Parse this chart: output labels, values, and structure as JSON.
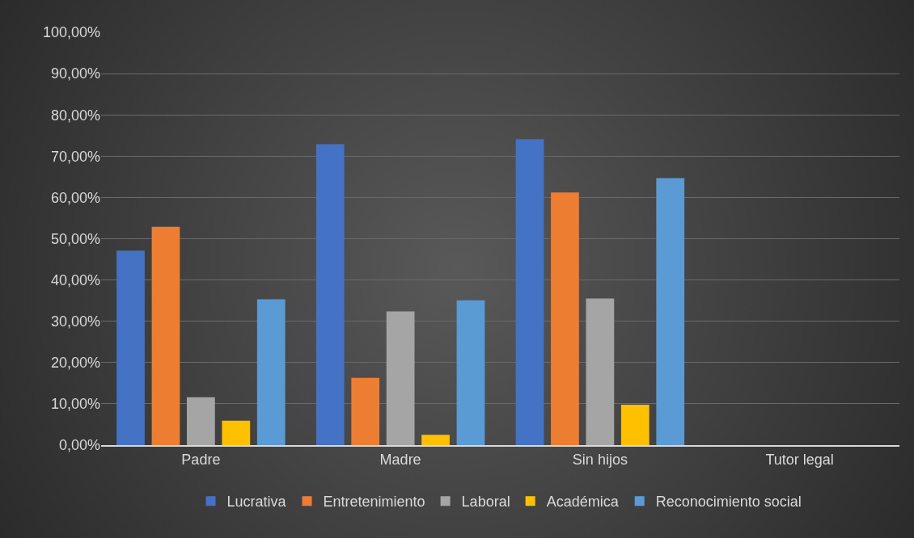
{
  "chart_data": {
    "type": "bar",
    "categories": [
      "Padre",
      "Madre",
      "Sin hijos",
      "Tutor legal"
    ],
    "series": [
      {
        "name": "Lucrativa",
        "color": "#4472c4",
        "values": [
          47.1,
          72.9,
          74.1,
          0
        ]
      },
      {
        "name": "Entretenimiento",
        "color": "#ed7d31",
        "values": [
          52.9,
          16.3,
          61.2,
          0
        ]
      },
      {
        "name": "Laboral",
        "color": "#a5a5a5",
        "values": [
          11.6,
          32.4,
          35.5,
          0
        ]
      },
      {
        "name": "Académica",
        "color": "#ffc000",
        "values": [
          5.9,
          2.5,
          9.8,
          0
        ]
      },
      {
        "name": "Reconocimiento social",
        "color": "#5b9bd5",
        "values": [
          35.3,
          35.1,
          64.7,
          0
        ]
      }
    ],
    "ylim": [
      0,
      100
    ],
    "yticks": [
      {
        "value": 0,
        "label": "0,00%"
      },
      {
        "value": 10,
        "label": "10,00%"
      },
      {
        "value": 20,
        "label": "20,00%"
      },
      {
        "value": 30,
        "label": "30,00%"
      },
      {
        "value": 40,
        "label": "40,00%"
      },
      {
        "value": 50,
        "label": "50,00%"
      },
      {
        "value": 60,
        "label": "60,00%"
      },
      {
        "value": 70,
        "label": "70,00%"
      },
      {
        "value": 80,
        "label": "80,00%"
      },
      {
        "value": 90,
        "label": "90,00%"
      },
      {
        "value": 100,
        "label": "100,00%"
      }
    ],
    "grid": "y",
    "legend": "bottom"
  }
}
